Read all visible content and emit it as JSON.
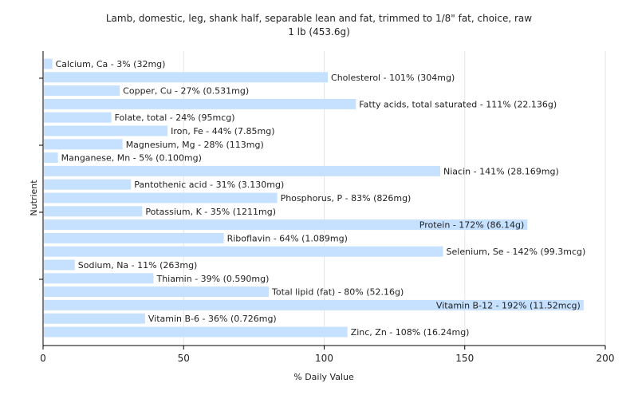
{
  "chart_data": {
    "type": "bar",
    "orientation": "horizontal",
    "title": "Lamb, domestic, leg, shank half, separable lean and fat, trimmed to 1/8\" fat, choice, raw",
    "subtitle": "1 lb (453.6g)",
    "xlabel": "% Daily Value",
    "ylabel": "Nutrient",
    "xlim": [
      0,
      200
    ],
    "xticks": [
      0,
      50,
      100,
      150,
      200
    ],
    "grid": "vertical",
    "bar_color": "#c6e0ff",
    "categories": [
      "Calcium, Ca",
      "Cholesterol",
      "Copper, Cu",
      "Fatty acids, total saturated",
      "Folate, total",
      "Iron, Fe",
      "Magnesium, Mg",
      "Manganese, Mn",
      "Niacin",
      "Pantothenic acid",
      "Phosphorus, P",
      "Potassium, K",
      "Protein",
      "Riboflavin",
      "Selenium, Se",
      "Sodium, Na",
      "Thiamin",
      "Total lipid (fat)",
      "Vitamin B-12",
      "Vitamin B-6",
      "Zinc, Zn"
    ],
    "values": [
      3,
      101,
      27,
      111,
      24,
      44,
      28,
      5,
      141,
      31,
      83,
      35,
      172,
      64,
      142,
      11,
      39,
      80,
      192,
      36,
      108
    ],
    "labels": [
      "Calcium, Ca - 3% (32mg)",
      "Cholesterol - 101% (304mg)",
      "Copper, Cu - 27% (0.531mg)",
      "Fatty acids, total saturated - 111% (22.136g)",
      "Folate, total - 24% (95mcg)",
      "Iron, Fe - 44% (7.85mg)",
      "Magnesium, Mg - 28% (113mg)",
      "Manganese, Mn - 5% (0.100mg)",
      "Niacin - 141% (28.169mg)",
      "Pantothenic acid - 31% (3.130mg)",
      "Phosphorus, P - 83% (826mg)",
      "Potassium, K - 35% (1211mg)",
      "Protein - 172% (86.14g)",
      "Riboflavin - 64% (1.089mg)",
      "Selenium, Se - 142% (99.3mcg)",
      "Sodium, Na - 11% (263mg)",
      "Thiamin - 39% (0.590mg)",
      "Total lipid (fat) - 80% (52.16g)",
      "Vitamin B-12 - 192% (11.52mcg)",
      "Vitamin B-6 - 36% (0.726mg)",
      "Zinc, Zn - 108% (16.24mg)"
    ]
  }
}
